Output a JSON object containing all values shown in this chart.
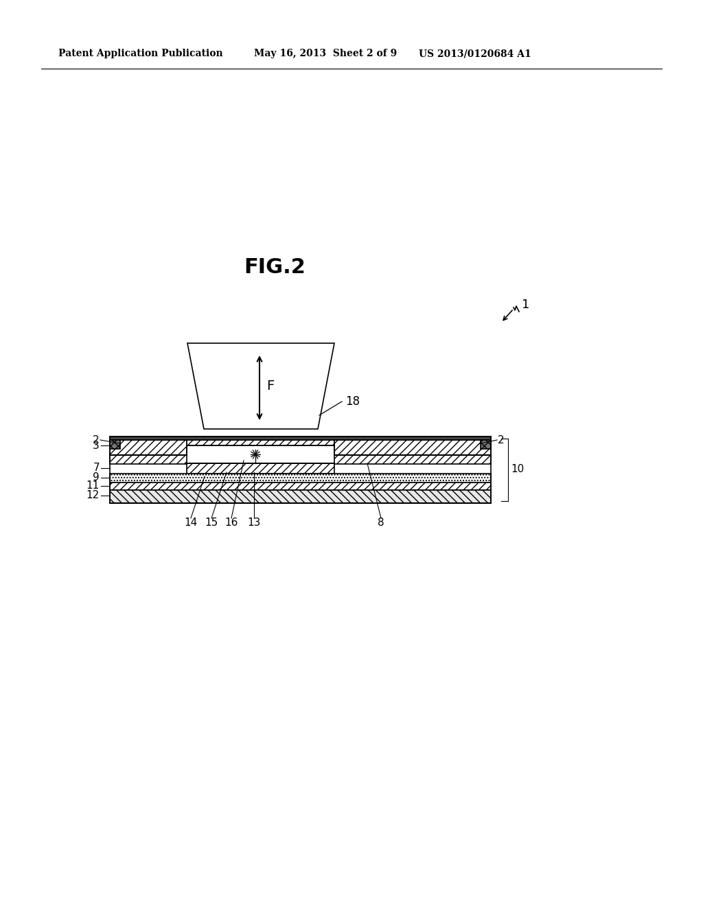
{
  "bg_color": "#ffffff",
  "header_left": "Patent Application Publication",
  "header_mid": "May 16, 2013  Sheet 2 of 9",
  "header_right": "US 2013/0120684 A1",
  "fig_title": "FIG.2",
  "label_1": "1",
  "label_18": "18",
  "label_F": "F",
  "label_2_left": "2",
  "label_3": "3",
  "label_7": "7",
  "label_9": "9",
  "label_11": "11",
  "label_12": "12",
  "label_2_right": "2",
  "label_10": "10",
  "label_14": "14",
  "label_15": "15",
  "label_16": "16",
  "label_13": "13",
  "label_8": "8",
  "line_color": "#000000"
}
